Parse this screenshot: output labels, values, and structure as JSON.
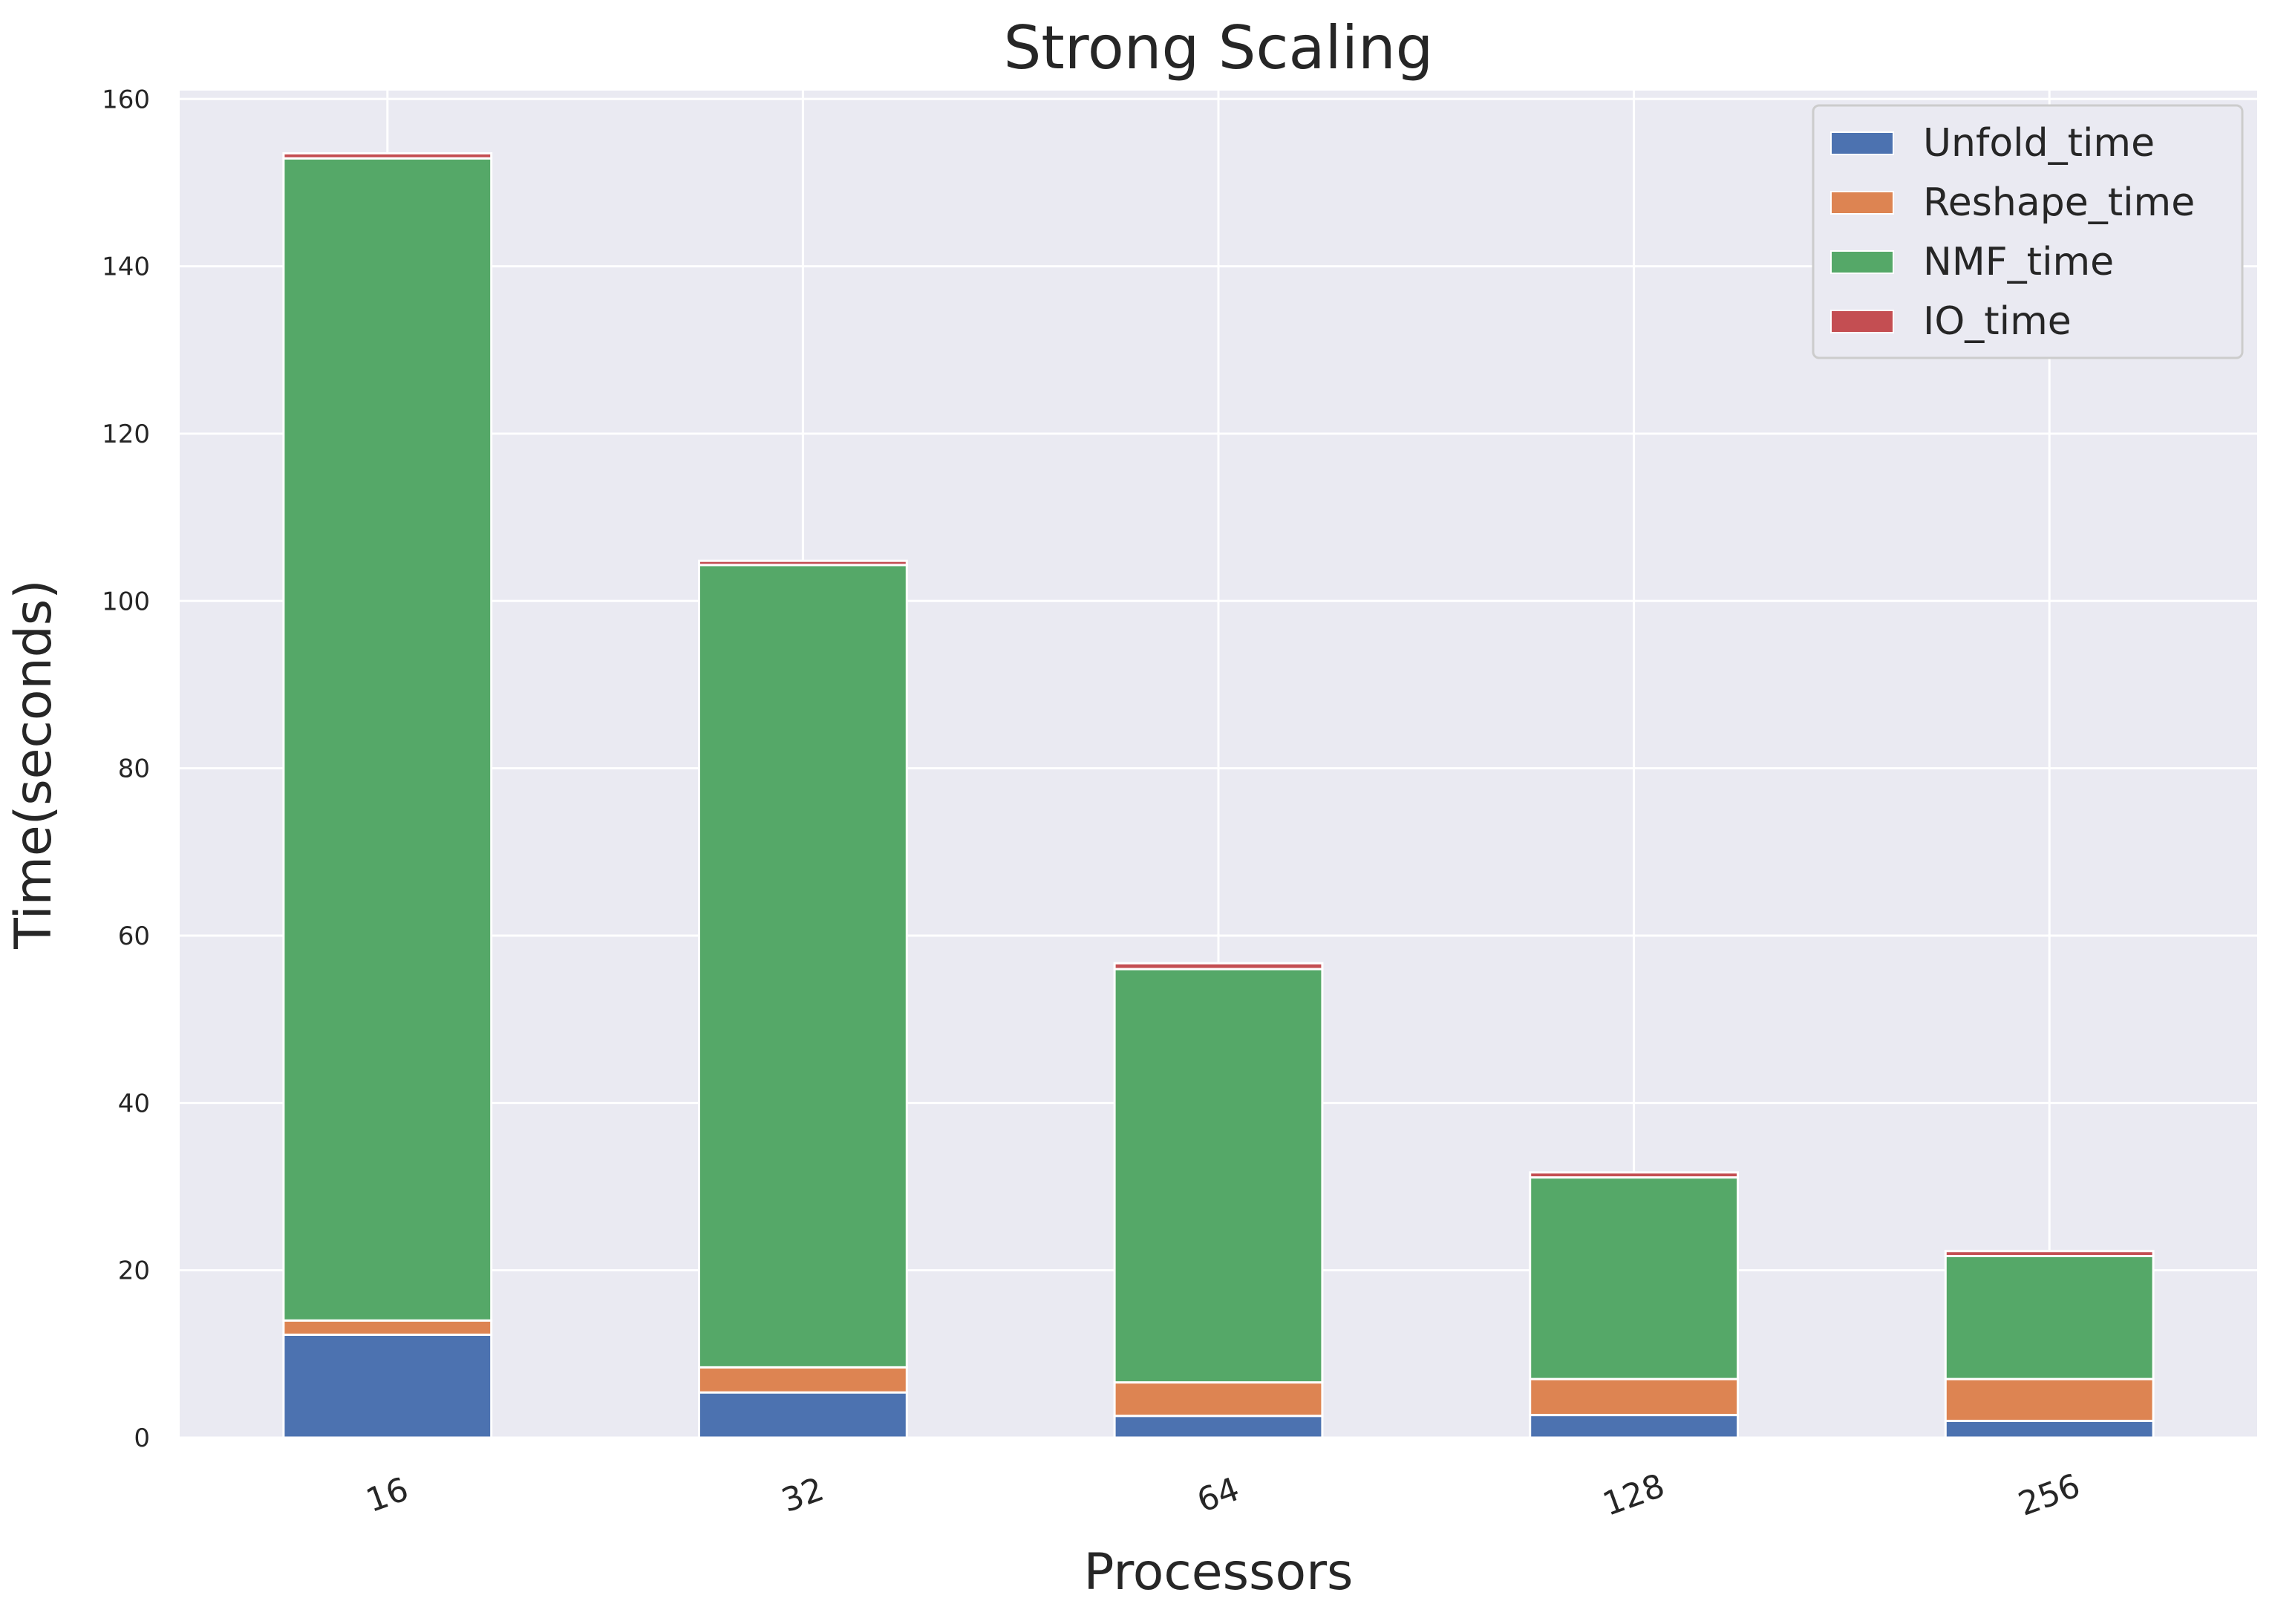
{
  "chart_data": {
    "type": "bar",
    "stacked": true,
    "title": "Strong Scaling",
    "xlabel": "Processors",
    "ylabel": "Time(seconds)",
    "categories": [
      "16",
      "32",
      "64",
      "128",
      "256"
    ],
    "ylim": [
      0,
      161
    ],
    "yticks": [
      0,
      20,
      40,
      60,
      80,
      100,
      120,
      140,
      160
    ],
    "grid": true,
    "legend_position": "top-right",
    "series": [
      {
        "name": "Unfold_time",
        "color": "#4c72b0",
        "values": [
          12.3,
          5.4,
          2.6,
          2.7,
          2.0
        ]
      },
      {
        "name": "Reshape_time",
        "color": "#dd8452",
        "values": [
          1.7,
          3.0,
          4.0,
          4.3,
          5.0
        ]
      },
      {
        "name": "NMF_time",
        "color": "#55a868",
        "values": [
          138.9,
          95.9,
          49.4,
          24.1,
          14.7
        ]
      },
      {
        "name": "IO_time",
        "color": "#c44e52",
        "values": [
          0.6,
          0.5,
          0.7,
          0.6,
          0.6
        ]
      }
    ]
  }
}
